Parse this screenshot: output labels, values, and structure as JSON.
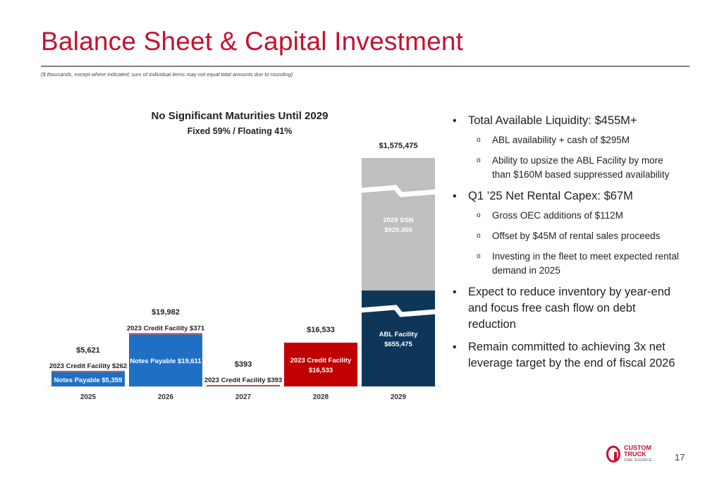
{
  "header": {
    "title": "Balance Sheet & Capital Investment",
    "footnote": "($ thousands, except where indicated; sum of individual items may not equal total amounts due to rounding)"
  },
  "chart_data": {
    "type": "bar",
    "stacked": true,
    "title": "No Significant Maturities Until 2029",
    "subtitle": "Fixed 59% / Floating 41%",
    "categories": [
      "2025",
      "2026",
      "2027",
      "2028",
      "2029"
    ],
    "totals": [
      "$5,621",
      "$19,982",
      "$393",
      "$16,533",
      "$1,575,475"
    ],
    "total_values": [
      5621,
      19982,
      393,
      16533,
      1575475
    ],
    "axis_break": true,
    "segments": [
      {
        "category": "2025",
        "name": "Notes Payable",
        "value": 5359,
        "label": "Notes Payable  $5,359",
        "color": "#1f6fc5",
        "label_inside": true
      },
      {
        "category": "2025",
        "name": "2023 Credit Facility",
        "value": 262,
        "label": "2023 Credit Facility  $262",
        "color": "#c0504d",
        "label_inside": false
      },
      {
        "category": "2026",
        "name": "Notes Payable",
        "value": 19611,
        "label": "Notes Payable  $19,611",
        "color": "#1f6fc5",
        "label_inside": true
      },
      {
        "category": "2026",
        "name": "2023 Credit Facility",
        "value": 371,
        "label": "2023 Credit Facility  $371",
        "color": "#c0504d",
        "label_inside": false
      },
      {
        "category": "2027",
        "name": "2023 Credit Facility",
        "value": 393,
        "label": "2023 Credit Facility  $393",
        "color": "#c0504d",
        "label_inside": false
      },
      {
        "category": "2028",
        "name": "2023 Credit Facility",
        "value": 16533,
        "label": "2023 Credit Facility\n$16,533",
        "color": "#c00000",
        "label_inside": true
      },
      {
        "category": "2029",
        "name": "ABL Facility",
        "value": 655475,
        "label": "ABL Facility\n$655,475",
        "color": "#0e3658",
        "label_inside": true
      },
      {
        "category": "2029",
        "name": "2029 SSN",
        "value": 920000,
        "label": "2029 SSN\n$920,000",
        "color": "#bfbfbf",
        "label_inside": true
      }
    ]
  },
  "bullets": [
    {
      "text": "Total Available Liquidity: $455M+",
      "sub": [
        "ABL availability + cash of $295M",
        "Ability to upsize the ABL Facility by more than $160M based suppressed availability"
      ]
    },
    {
      "text": "Q1 ’25 Net Rental Capex: $67M",
      "sub": [
        "Gross OEC additions of $112M",
        "Offset by $45M of rental sales proceeds",
        "Investing in the fleet to meet expected rental demand in 2025"
      ]
    },
    {
      "text": "Expect to reduce inventory by year-end and focus free cash flow on debt reduction",
      "sub": []
    },
    {
      "text": "Remain committed to achieving 3x net leverage target by the end of fiscal 2026",
      "sub": []
    }
  ],
  "bullet_symbol": "•",
  "sub_bullet_symbol": "o",
  "footer": {
    "logo_line1": "CUSTOM",
    "logo_line2": "TRUCK",
    "logo_tagline": "ONE SOURCE.",
    "page_number": "17"
  },
  "colors": {
    "brand_red": "#c8102e",
    "notes_payable": "#1f6fc5",
    "credit_facility_small": "#c0504d",
    "credit_facility_2028": "#c00000",
    "abl_facility": "#0e3658",
    "ssn_2029": "#bfbfbf"
  }
}
